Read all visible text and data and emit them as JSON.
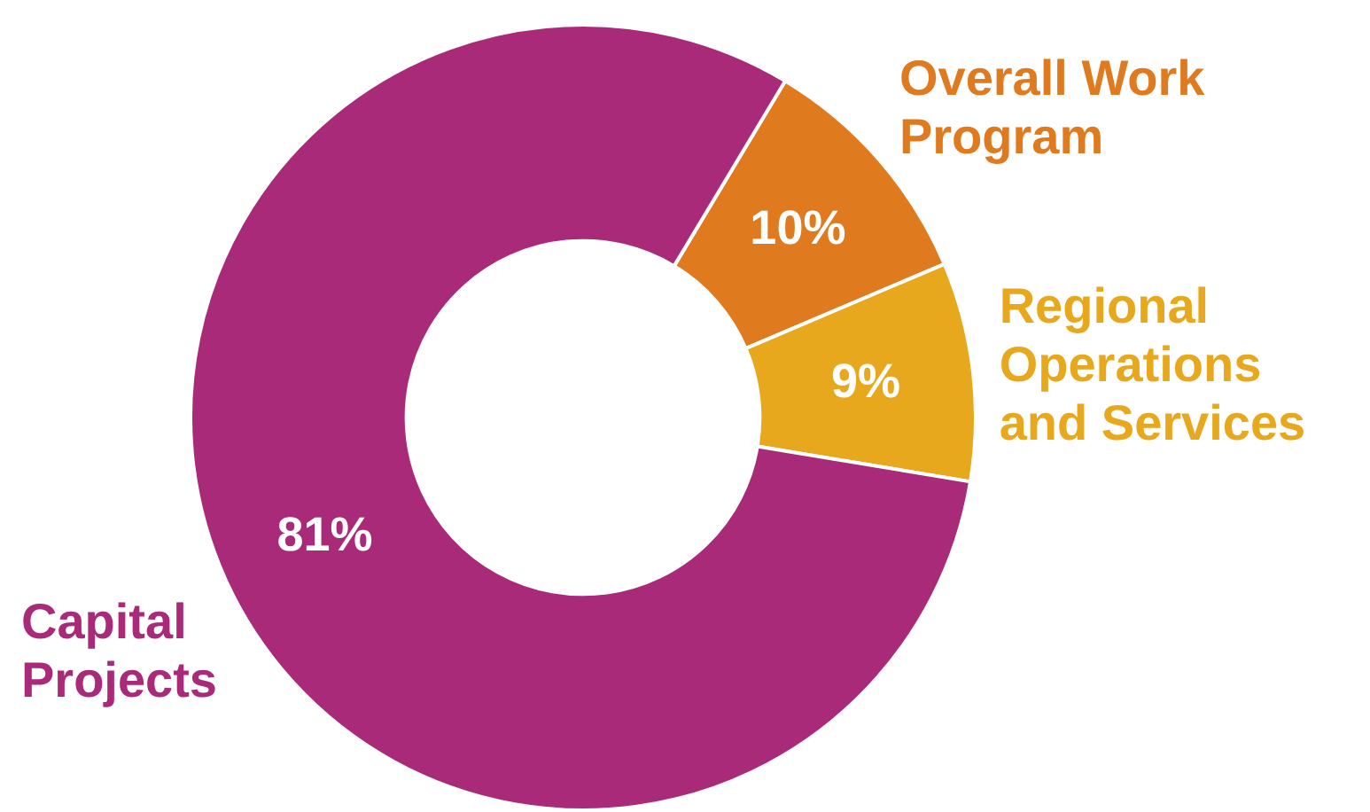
{
  "chart_data": {
    "type": "donut",
    "categories": [
      "Overall Work Program",
      "Regional Operations and Services",
      "Capital Projects"
    ],
    "values": [
      10,
      9,
      81
    ],
    "value_labels": [
      "10%",
      "9%",
      "81%"
    ],
    "colors": [
      "#e07a1f",
      "#e8a81e",
      "#a92a78"
    ],
    "legend": false
  }
}
